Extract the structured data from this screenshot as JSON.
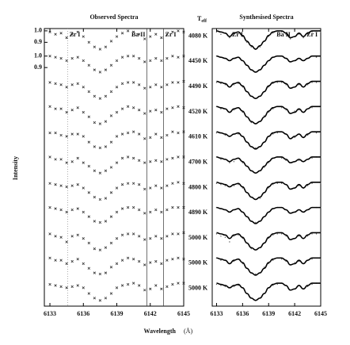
{
  "chart_data": [
    {
      "type": "scatter",
      "title": "Observed Spectra",
      "color": "#333333",
      "x": [
        6133,
        6133.5,
        6134,
        6134.5,
        6135,
        6135.5,
        6136,
        6136.5,
        6137,
        6137.5,
        6138,
        6138.5,
        6139,
        6139.5,
        6140,
        6140.5,
        6141,
        6141.5,
        6142,
        6142.5,
        6143,
        6143.5,
        6144,
        6144.5,
        6145
      ],
      "xlim": [
        6132.5,
        6145
      ],
      "xticks": [
        6133,
        6136,
        6139,
        6142,
        6145
      ],
      "ylim": [
        0.8,
        1.02
      ],
      "yticks": [
        {
          "value": 1.0,
          "label": "1.0"
        },
        {
          "value": 0.9,
          "label": "0.9"
        }
      ],
      "yticks_rows": [
        0,
        1
      ],
      "lines": [
        {
          "label": "Zr I",
          "wavelength": 6134.6,
          "style": "dotted"
        },
        {
          "label": "Ba II",
          "wavelength": 6141.7,
          "style": "solid"
        },
        {
          "label": "Zr I",
          "wavelength": 6143.2,
          "style": "solid"
        }
      ],
      "series": [
        {
          "values": [
            0.99,
            0.97,
            0.98,
            0.94,
            0.97,
            0.99,
            0.95,
            0.9,
            0.86,
            0.84,
            0.86,
            0.91,
            0.95,
            0.98,
            1.0,
            0.99,
            0.97,
            0.93,
            0.95,
            0.97,
            0.94,
            0.97,
            0.99,
            1.0,
            0.99
          ]
        },
        {
          "values": [
            1.0,
            0.99,
            0.98,
            0.96,
            0.98,
            0.99,
            0.96,
            0.92,
            0.88,
            0.86,
            0.88,
            0.92,
            0.96,
            0.99,
            1.0,
            1.0,
            0.98,
            0.95,
            0.96,
            0.98,
            0.96,
            0.98,
            1.0,
            0.99,
            1.0
          ]
        },
        {
          "values": [
            0.99,
            0.98,
            0.97,
            0.95,
            0.97,
            0.98,
            0.95,
            0.91,
            0.87,
            0.85,
            0.87,
            0.91,
            0.95,
            0.98,
            0.99,
            0.99,
            0.97,
            0.94,
            0.95,
            0.97,
            0.95,
            0.97,
            0.99,
            0.99,
            1.0
          ]
        },
        {
          "values": [
            1.0,
            0.98,
            0.98,
            0.95,
            0.97,
            0.99,
            0.95,
            0.91,
            0.86,
            0.85,
            0.87,
            0.92,
            0.95,
            0.98,
            1.0,
            0.99,
            0.97,
            0.94,
            0.96,
            0.97,
            0.95,
            0.98,
            0.99,
            1.0,
            0.99
          ]
        },
        {
          "values": [
            0.99,
            0.99,
            0.97,
            0.96,
            0.98,
            0.98,
            0.96,
            0.91,
            0.87,
            0.86,
            0.87,
            0.91,
            0.96,
            0.98,
            0.99,
            1.0,
            0.98,
            0.94,
            0.95,
            0.98,
            0.95,
            0.97,
            1.0,
            0.99,
            1.0
          ]
        },
        {
          "values": [
            1.0,
            0.98,
            0.98,
            0.95,
            0.96,
            0.99,
            0.95,
            0.92,
            0.88,
            0.86,
            0.88,
            0.91,
            0.95,
            0.99,
            1.0,
            0.99,
            0.97,
            0.95,
            0.96,
            0.97,
            0.96,
            0.98,
            0.99,
            1.0,
            1.0
          ]
        },
        {
          "values": [
            0.99,
            0.98,
            0.97,
            0.96,
            0.97,
            0.98,
            0.95,
            0.91,
            0.87,
            0.85,
            0.86,
            0.91,
            0.95,
            0.98,
            0.99,
            0.99,
            0.98,
            0.94,
            0.95,
            0.97,
            0.95,
            0.97,
            0.99,
            1.0,
            0.99
          ]
        },
        {
          "values": [
            1.0,
            0.99,
            0.98,
            0.96,
            0.98,
            0.99,
            0.96,
            0.92,
            0.88,
            0.87,
            0.88,
            0.92,
            0.96,
            0.99,
            1.0,
            1.0,
            0.98,
            0.95,
            0.96,
            0.98,
            0.96,
            0.98,
            1.0,
            1.0,
            1.0
          ]
        },
        {
          "values": [
            0.99,
            0.97,
            0.96,
            0.92,
            0.97,
            0.98,
            0.95,
            0.91,
            0.86,
            0.85,
            0.87,
            0.91,
            0.95,
            0.98,
            0.99,
            0.99,
            0.97,
            0.94,
            0.95,
            0.97,
            0.95,
            0.97,
            0.99,
            0.99,
            1.0
          ]
        },
        {
          "values": [
            1.0,
            0.98,
            0.98,
            0.95,
            0.97,
            0.99,
            0.95,
            0.91,
            0.87,
            0.86,
            0.87,
            0.92,
            0.95,
            0.98,
            1.0,
            0.99,
            0.97,
            0.94,
            0.96,
            0.97,
            0.95,
            0.98,
            0.99,
            1.0,
            0.99
          ]
        },
        {
          "values": [
            0.99,
            0.98,
            0.97,
            0.96,
            0.97,
            0.98,
            0.96,
            0.91,
            0.87,
            0.85,
            0.87,
            0.91,
            0.96,
            0.98,
            0.99,
            1.0,
            0.98,
            0.94,
            0.95,
            0.98,
            0.95,
            0.97,
            0.99,
            1.0,
            1.0
          ]
        }
      ]
    },
    {
      "type": "line",
      "title": "Synthesised Spectra",
      "color": "#000000",
      "x": [
        6133,
        6133.5,
        6134,
        6134.5,
        6135,
        6135.5,
        6136,
        6136.5,
        6137,
        6137.5,
        6138,
        6138.5,
        6139,
        6139.5,
        6140,
        6140.5,
        6141,
        6141.5,
        6142,
        6142.5,
        6143,
        6143.5,
        6144,
        6144.5,
        6145
      ],
      "xlim": [
        6132.5,
        6145
      ],
      "xticks": [
        6133,
        6136,
        6139,
        6142,
        6145
      ],
      "ylim": [
        0.8,
        1.02
      ],
      "lines": [
        {
          "label": "Zr I",
          "wavelength": 6134.6
        },
        {
          "label": "Ba II",
          "wavelength": 6141.7
        },
        {
          "label": "Zr I",
          "wavelength": 6143.2
        }
      ],
      "series": [
        {
          "values": [
            1.0,
            0.99,
            0.98,
            0.95,
            0.98,
            0.99,
            0.96,
            0.91,
            0.87,
            0.84,
            0.87,
            0.91,
            0.96,
            0.99,
            1.0,
            1.0,
            0.98,
            0.94,
            0.95,
            0.98,
            0.95,
            0.98,
            1.0,
            1.0,
            1.0
          ]
        },
        {
          "values": [
            1.0,
            0.99,
            0.98,
            0.96,
            0.98,
            0.99,
            0.96,
            0.92,
            0.88,
            0.86,
            0.88,
            0.92,
            0.96,
            0.99,
            1.0,
            1.0,
            0.98,
            0.95,
            0.96,
            0.98,
            0.96,
            0.98,
            1.0,
            1.0,
            1.0
          ]
        },
        {
          "values": [
            1.0,
            0.99,
            0.98,
            0.95,
            0.98,
            0.99,
            0.96,
            0.91,
            0.87,
            0.85,
            0.87,
            0.91,
            0.96,
            0.99,
            1.0,
            1.0,
            0.98,
            0.94,
            0.95,
            0.98,
            0.95,
            0.98,
            1.0,
            1.0,
            1.0
          ]
        },
        {
          "values": [
            1.0,
            0.99,
            0.98,
            0.95,
            0.98,
            0.99,
            0.96,
            0.91,
            0.87,
            0.85,
            0.87,
            0.91,
            0.96,
            0.99,
            1.0,
            1.0,
            0.98,
            0.94,
            0.95,
            0.98,
            0.95,
            0.98,
            1.0,
            1.0,
            1.0
          ]
        },
        {
          "values": [
            1.0,
            0.99,
            0.98,
            0.96,
            0.98,
            0.99,
            0.96,
            0.91,
            0.87,
            0.85,
            0.87,
            0.91,
            0.96,
            0.99,
            1.0,
            1.0,
            0.98,
            0.94,
            0.96,
            0.98,
            0.95,
            0.98,
            1.0,
            1.0,
            1.0
          ]
        },
        {
          "values": [
            1.0,
            0.99,
            0.98,
            0.96,
            0.98,
            0.99,
            0.96,
            0.92,
            0.88,
            0.86,
            0.88,
            0.92,
            0.96,
            0.99,
            1.0,
            1.0,
            0.98,
            0.95,
            0.96,
            0.98,
            0.96,
            0.98,
            1.0,
            1.0,
            1.0
          ]
        },
        {
          "values": [
            1.0,
            0.99,
            0.98,
            0.96,
            0.98,
            0.99,
            0.96,
            0.91,
            0.87,
            0.85,
            0.87,
            0.91,
            0.96,
            0.99,
            1.0,
            1.0,
            0.98,
            0.94,
            0.95,
            0.98,
            0.95,
            0.98,
            1.0,
            1.0,
            1.0
          ]
        },
        {
          "values": [
            1.0,
            0.99,
            0.98,
            0.96,
            0.98,
            0.99,
            0.96,
            0.92,
            0.88,
            0.86,
            0.88,
            0.92,
            0.96,
            0.99,
            1.0,
            1.0,
            0.98,
            0.95,
            0.96,
            0.98,
            0.96,
            0.98,
            1.0,
            1.0,
            1.0
          ]
        },
        {
          "values": [
            1.0,
            0.99,
            0.98,
            0.95,
            0.98,
            0.99,
            0.96,
            0.91,
            0.87,
            0.85,
            0.87,
            0.91,
            0.96,
            0.99,
            1.0,
            1.0,
            0.98,
            0.94,
            0.95,
            0.98,
            0.95,
            0.98,
            1.0,
            1.0,
            1.0
          ]
        },
        {
          "values": [
            1.0,
            0.99,
            0.98,
            0.95,
            0.98,
            0.99,
            0.96,
            0.91,
            0.87,
            0.85,
            0.87,
            0.91,
            0.96,
            0.99,
            1.0,
            1.0,
            0.98,
            0.94,
            0.95,
            0.98,
            0.95,
            0.98,
            1.0,
            1.0,
            1.0
          ]
        },
        {
          "values": [
            1.0,
            0.99,
            0.98,
            0.96,
            0.98,
            0.99,
            0.96,
            0.91,
            0.87,
            0.85,
            0.87,
            0.91,
            0.96,
            0.99,
            1.0,
            1.0,
            0.98,
            0.94,
            0.95,
            0.98,
            0.95,
            0.98,
            1.0,
            1.0,
            1.0
          ]
        }
      ]
    }
  ],
  "teff_main": "T",
  "teff_sub": "eff",
  "temperatures": [
    "4080 K",
    "4450 K",
    "4490 K",
    "4520 K",
    "4610 K",
    "4700 K",
    "4800 K",
    "4890 K",
    "5000 K",
    "5000 K",
    "5000 K"
  ],
  "ylabel": "Intensity",
  "xlabel": "Wavelength",
  "xunit": "(Å)"
}
